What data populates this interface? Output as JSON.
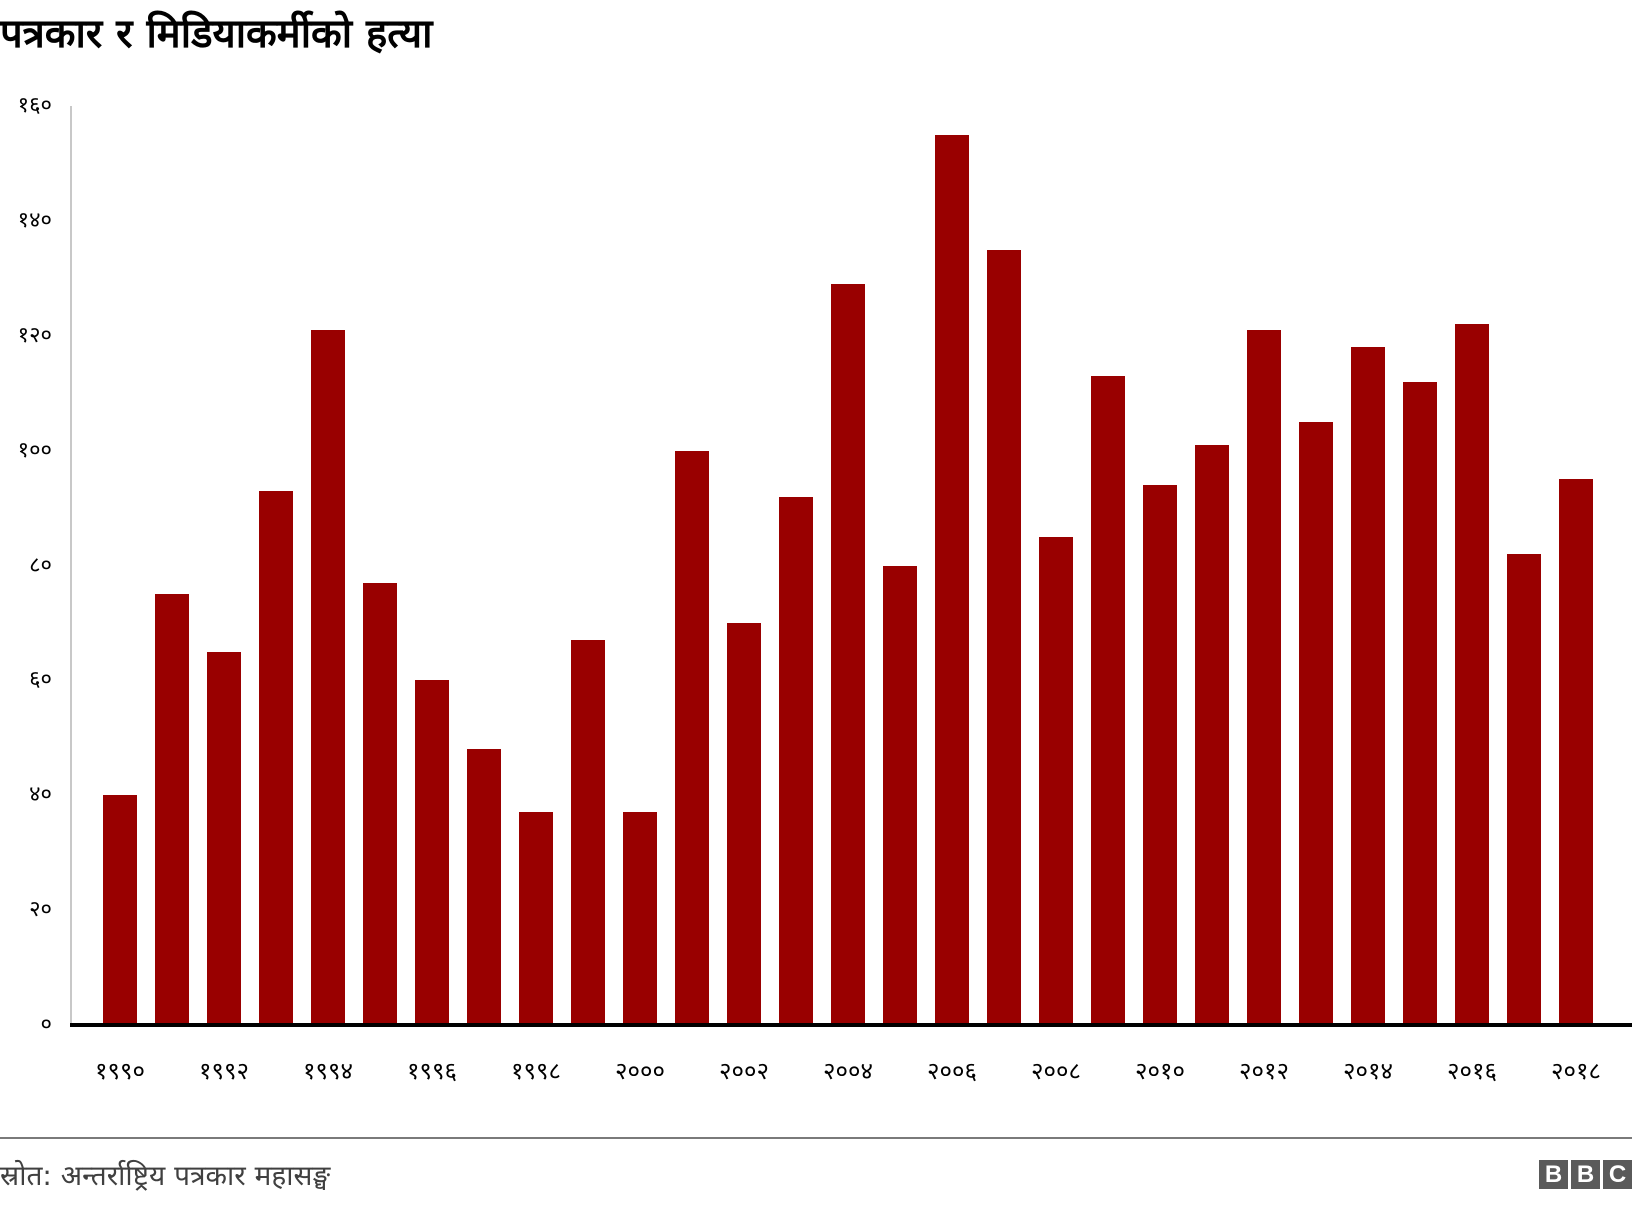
{
  "title": "पत्रकार र मिडियाकर्मीको हत्या",
  "source": "स्रोत: अन्तर्राष्ट्रिय पत्रकार महासङ्घ",
  "logo": [
    "B",
    "B",
    "C"
  ],
  "colors": {
    "bar": "#990000",
    "axis": "#000000",
    "gridline": "#c8c8c8",
    "divider": "#7a7a7a"
  },
  "y_ticks": [
    "१६०",
    "१४०",
    "१२०",
    "१००",
    "८०",
    "६०",
    "४०",
    "२०",
    "०"
  ],
  "x_ticks": [
    "१९९०",
    "१९९२",
    "१९९४",
    "१९९६",
    "१९९८",
    "२०००",
    "२००२",
    "२००४",
    "२००६",
    "२००८",
    "२०१०",
    "२०१२",
    "२०१४",
    "२०१६",
    "२०१८"
  ],
  "chart_data": {
    "type": "bar",
    "title": "पत्रकार र मिडियाकर्मीको हत्या",
    "xlabel": "",
    "ylabel": "",
    "ylim": [
      0,
      160
    ],
    "grid": false,
    "legend": null,
    "categories": [
      1990,
      1991,
      1992,
      1993,
      1994,
      1995,
      1996,
      1997,
      1998,
      1999,
      2000,
      2001,
      2002,
      2003,
      2004,
      2005,
      2006,
      2007,
      2008,
      2009,
      2010,
      2011,
      2012,
      2013,
      2014,
      2015,
      2016,
      2017,
      2018
    ],
    "values": [
      40,
      75,
      65,
      93,
      121,
      77,
      60,
      48,
      37,
      67,
      37,
      100,
      70,
      92,
      129,
      80,
      155,
      135,
      85,
      113,
      94,
      101,
      121,
      105,
      118,
      112,
      122,
      82,
      95
    ],
    "y_tick_values": [
      0,
      20,
      40,
      60,
      80,
      100,
      120,
      140,
      160
    ],
    "x_tick_labels_every": 2,
    "source": "स्रोत: अन्तर्राष्ट्रिय पत्रकार महासङ्घ"
  }
}
